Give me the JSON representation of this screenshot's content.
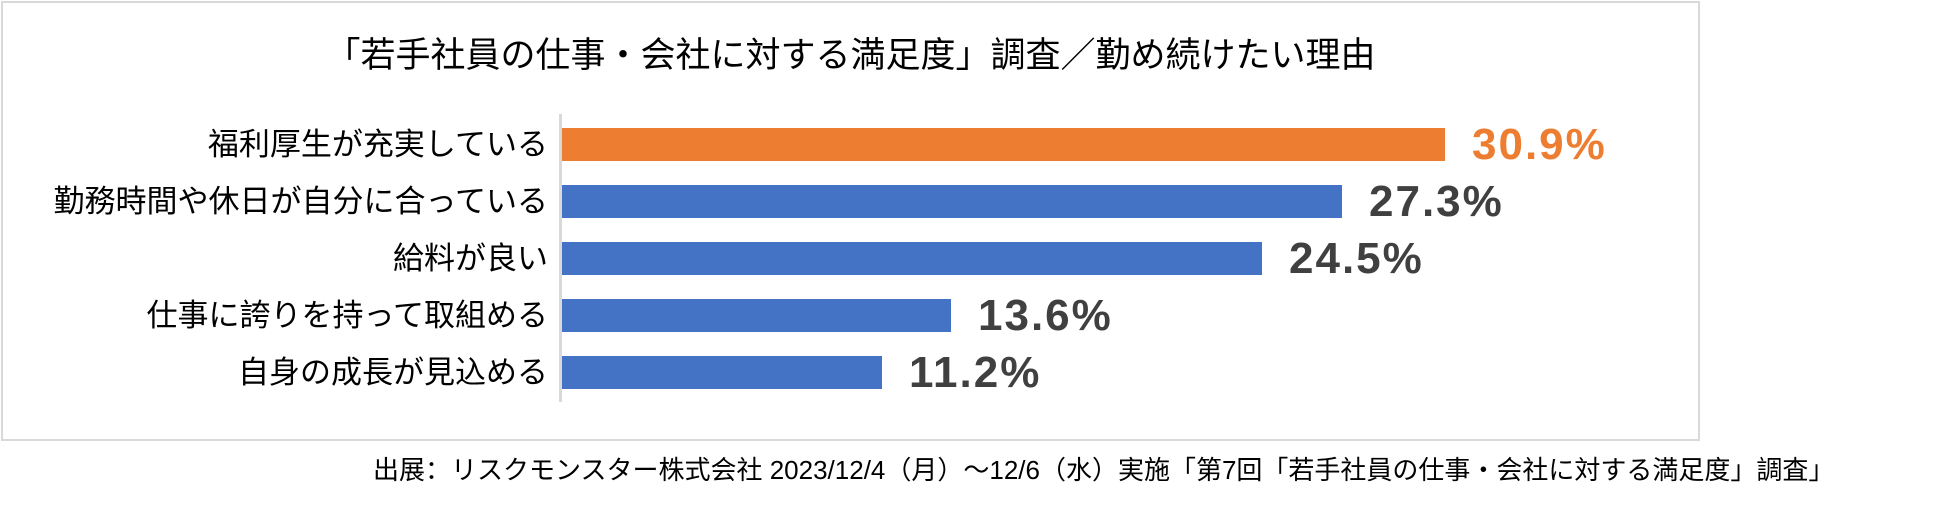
{
  "title": "「若手社員の仕事・会社に対する満足度」調査／勤め続けたい理由",
  "source": "出展：リスクモンスター株式会社 2023/12/4（月）～12/6（水）実施「第7回「若手社員の仕事・会社に対する満足度」調査」",
  "chart_data": {
    "type": "bar",
    "orientation": "horizontal",
    "title": "「若手社員の仕事・会社に対する満足度」調査／勤め続けたい理由",
    "categories": [
      "福利厚生が充実している",
      "勤務時間や休日が自分に合っている",
      "給料が良い",
      "仕事に誇りを持って取組める",
      "自身の成長が見込める"
    ],
    "values": [
      30.9,
      27.3,
      24.5,
      13.6,
      11.2
    ],
    "labels": [
      "30.9%",
      "27.3%",
      "24.5%",
      "13.6%",
      "11.2%"
    ],
    "unit": "%",
    "colors": [
      "#ED7D31",
      "#4472C4",
      "#4472C4",
      "#4472C4",
      "#4472C4"
    ],
    "label_colors": [
      "#ED7D31",
      "#404040",
      "#404040",
      "#404040",
      "#404040"
    ],
    "highlight_color": "#ED7D31",
    "bar_color": "#4472C4",
    "axis_color": "#D9D9D9",
    "xlim": [
      0,
      39.5
    ],
    "grid": false,
    "legend": false,
    "value_labels_position": "outside-end"
  }
}
